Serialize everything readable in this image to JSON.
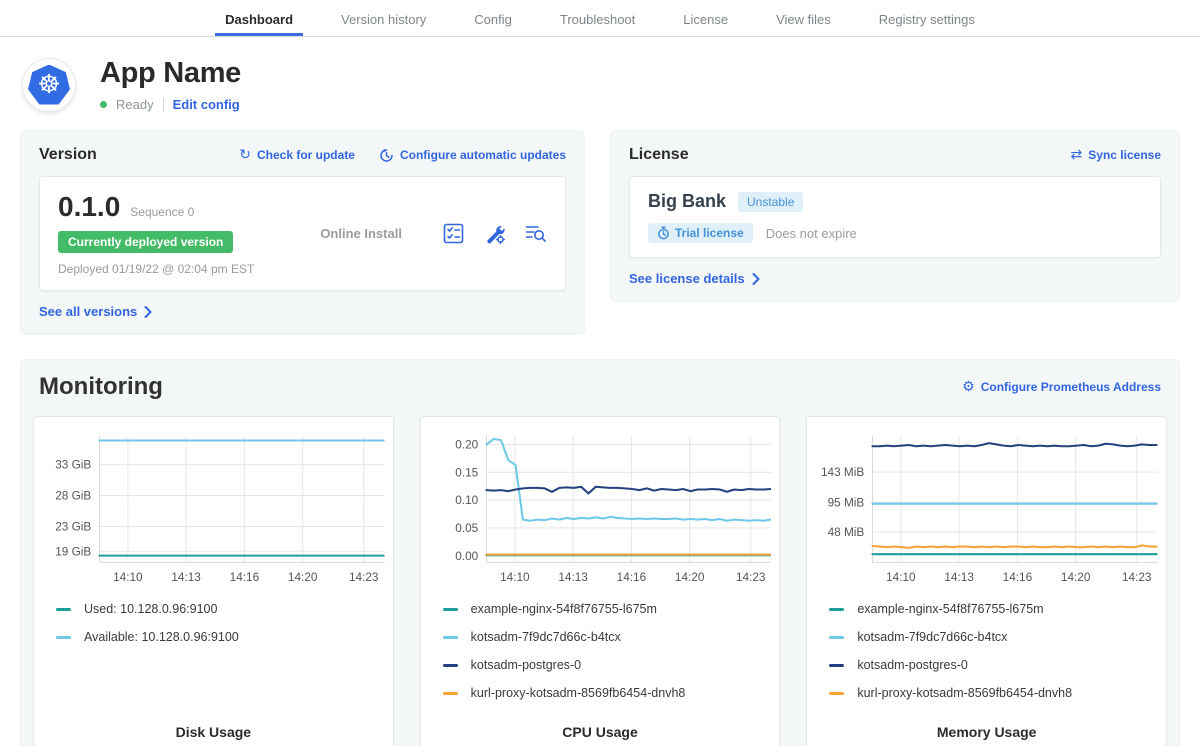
{
  "tabs": {
    "items": [
      {
        "label": "Dashboard",
        "active": true
      },
      {
        "label": "Version history",
        "active": false
      },
      {
        "label": "Config",
        "active": false
      },
      {
        "label": "Troubleshoot",
        "active": false
      },
      {
        "label": "License",
        "active": false
      },
      {
        "label": "View files",
        "active": false
      },
      {
        "label": "Registry settings",
        "active": false
      }
    ]
  },
  "app": {
    "name": "App Name",
    "status": "Ready",
    "edit_config_label": "Edit config",
    "logo_icon": "kubernetes-helm-wheel",
    "logo_glyph": "☸",
    "status_color": "#44bb66"
  },
  "version": {
    "title": "Version",
    "check_update_label": "Check for update",
    "check_update_glyph": "↻",
    "auto_updates_label": "Configure automatic updates",
    "number": "0.1.0",
    "sequence": "Sequence 0",
    "deployed_badge": "Currently deployed version",
    "deployed_at": "Deployed 01/19/22 @ 02:04 pm EST",
    "install_type": "Online Install",
    "action_icons": [
      "preflight-checks-icon",
      "config-tools-icon",
      "deploy-logs-icon"
    ],
    "see_all_label": "See all versions"
  },
  "license": {
    "title": "License",
    "sync_label": "Sync license",
    "sync_glyph": "⇄",
    "customer": "Big Bank",
    "channel": "Unstable",
    "type_badge": "Trial license",
    "expiry": "Does not expire",
    "details_label": "See license details"
  },
  "monitoring": {
    "title": "Monitoring",
    "configure_label": "Configure Prometheus Address",
    "gear_glyph": "⚙",
    "chart_data": [
      {
        "type": "line",
        "title": "Disk Usage",
        "y_domain": [
          17.2,
          37.6
        ],
        "y_ticks": [
          {
            "value": 33,
            "label": "33 GiB"
          },
          {
            "value": 28,
            "label": "28 GiB"
          },
          {
            "value": 23,
            "label": "23 GiB"
          },
          {
            "value": 19,
            "label": "19 GiB"
          }
        ],
        "x_ticks": [
          {
            "pos": 0.1,
            "label": "14:10"
          },
          {
            "pos": 0.305,
            "label": "14:13"
          },
          {
            "pos": 0.51,
            "label": "14:16"
          },
          {
            "pos": 0.715,
            "label": "14:20"
          },
          {
            "pos": 0.93,
            "label": "14:23"
          }
        ],
        "series": [
          {
            "name": "Used: 10.128.0.96:9100",
            "color": "#1d9e9b",
            "values": [
              18.3,
              18.3
            ]
          },
          {
            "name": "Available: 10.128.0.96:9100",
            "color": "#6fc8e8",
            "values": [
              36.9,
              36.9
            ]
          }
        ]
      },
      {
        "type": "line",
        "title": "CPU Usage",
        "y_domain": [
          -0.012,
          0.215
        ],
        "y_ticks": [
          {
            "value": 0.2,
            "label": "0.20"
          },
          {
            "value": 0.15,
            "label": "0.15"
          },
          {
            "value": 0.1,
            "label": "0.10"
          },
          {
            "value": 0.05,
            "label": "0.05"
          },
          {
            "value": 0.0,
            "label": "0.00"
          }
        ],
        "x_ticks": [
          {
            "pos": 0.1,
            "label": "14:10"
          },
          {
            "pos": 0.305,
            "label": "14:13"
          },
          {
            "pos": 0.51,
            "label": "14:16"
          },
          {
            "pos": 0.715,
            "label": "14:20"
          },
          {
            "pos": 0.93,
            "label": "14:23"
          }
        ],
        "series": [
          {
            "name": "example-nginx-54f8f76755-l675m",
            "color": "#1d9e9b",
            "values": [
              0.001,
              0.001
            ]
          },
          {
            "name": "kotsadm-7f9dc7d66c-b4tcx",
            "color": "#6fc8e8",
            "values": [
              0.2,
              0.21,
              0.208,
              0.172,
              0.163,
              0.065,
              0.063,
              0.065,
              0.064,
              0.067,
              0.065,
              0.068,
              0.066,
              0.068,
              0.067,
              0.069,
              0.067,
              0.07,
              0.068,
              0.067,
              0.066,
              0.067,
              0.066,
              0.067,
              0.066,
              0.066,
              0.067,
              0.065,
              0.066,
              0.065,
              0.066,
              0.064,
              0.066,
              0.063,
              0.065,
              0.064,
              0.063,
              0.064,
              0.063,
              0.065
            ]
          },
          {
            "name": "kotsadm-postgres-0",
            "color": "#24407e",
            "values": [
              0.118,
              0.117,
              0.118,
              0.116,
              0.119,
              0.121,
              0.122,
              0.122,
              0.121,
              0.115,
              0.122,
              0.123,
              0.122,
              0.124,
              0.112,
              0.124,
              0.123,
              0.122,
              0.122,
              0.121,
              0.12,
              0.118,
              0.121,
              0.117,
              0.12,
              0.119,
              0.118,
              0.12,
              0.116,
              0.119,
              0.119,
              0.12,
              0.119,
              0.115,
              0.119,
              0.118,
              0.12,
              0.119,
              0.119,
              0.12
            ]
          },
          {
            "name": "kurl-proxy-kotsadm-8569fb6454-dnvh8",
            "color": "#f7a43c",
            "values": [
              0.002,
              0.002
            ]
          }
        ]
      },
      {
        "type": "line",
        "title": "Memory Usage",
        "y_domain": [
          0,
          200
        ],
        "y_ticks": [
          {
            "value": 143,
            "label": "143 MiB"
          },
          {
            "value": 95,
            "label": "95 MiB"
          },
          {
            "value": 48,
            "label": "48 MiB"
          }
        ],
        "x_ticks": [
          {
            "pos": 0.1,
            "label": "14:10"
          },
          {
            "pos": 0.305,
            "label": "14:13"
          },
          {
            "pos": 0.51,
            "label": "14:16"
          },
          {
            "pos": 0.715,
            "label": "14:20"
          },
          {
            "pos": 0.93,
            "label": "14:23"
          }
        ],
        "series": [
          {
            "name": "example-nginx-54f8f76755-l675m",
            "color": "#1d9e9b",
            "values": [
              13,
              13
            ]
          },
          {
            "name": "kotsadm-7f9dc7d66c-b4tcx",
            "color": "#6fc8e8",
            "values": [
              93,
              93
            ]
          },
          {
            "name": "kotsadm-postgres-0",
            "color": "#24407e",
            "values": [
              184,
              184,
              185,
              184,
              185,
              186,
              184,
              185,
              184,
              185,
              186,
              185,
              184,
              185,
              184,
              186,
              189,
              187,
              185,
              184,
              186,
              185,
              184,
              185,
              184,
              185,
              184,
              184,
              185,
              186,
              184,
              185,
              188,
              187,
              185,
              184,
              185,
              187,
              186,
              186
            ]
          },
          {
            "name": "kurl-proxy-kotsadm-8569fb6454-dnvh8",
            "color": "#f7a43c",
            "values": [
              26,
              25,
              24,
              25,
              24,
              23,
              25,
              24,
              25,
              24,
              25,
              24,
              25,
              25,
              24,
              25,
              24,
              25,
              24,
              25,
              25,
              24,
              25,
              24,
              24,
              25,
              24,
              25,
              24,
              24,
              25,
              24,
              25,
              24,
              25,
              24,
              24,
              27,
              25,
              25
            ]
          }
        ]
      }
    ]
  },
  "colors": {
    "link_blue": "#3266e0",
    "accent_green": "#44bb66",
    "badge_blue_bg": "#e0f0fb",
    "badge_blue_text": "#4591d8",
    "grid": "#e7e7e7",
    "axis_text": "#555555"
  }
}
